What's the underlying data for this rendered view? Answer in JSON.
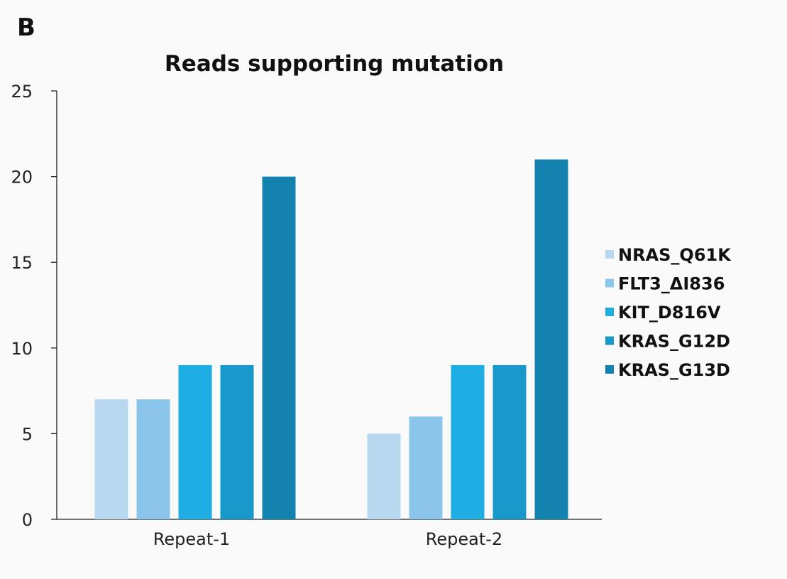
{
  "panel_label": "B",
  "chart_data": {
    "type": "bar",
    "title": "Reads supporting mutation",
    "xlabel": "",
    "ylabel": "",
    "categories": [
      "Repeat-1",
      "Repeat-2"
    ],
    "ylim": [
      0,
      25
    ],
    "yticks": [
      0,
      5,
      10,
      15,
      20,
      25
    ],
    "grid": false,
    "legend_position": "right",
    "series": [
      {
        "name": "NRAS_Q61K",
        "color": "#b8d8f0",
        "values": [
          7,
          5
        ]
      },
      {
        "name": "FLT3_ΔI836",
        "color": "#8cc5ea",
        "values": [
          7,
          6
        ]
      },
      {
        "name": "KIT_D816V",
        "color": "#1eaee3",
        "values": [
          9,
          9
        ]
      },
      {
        "name": "KRAS_G12D",
        "color": "#1999cb",
        "values": [
          9,
          9
        ]
      },
      {
        "name": "KRAS_G13D",
        "color": "#1382ae",
        "values": [
          20,
          21
        ]
      }
    ]
  }
}
